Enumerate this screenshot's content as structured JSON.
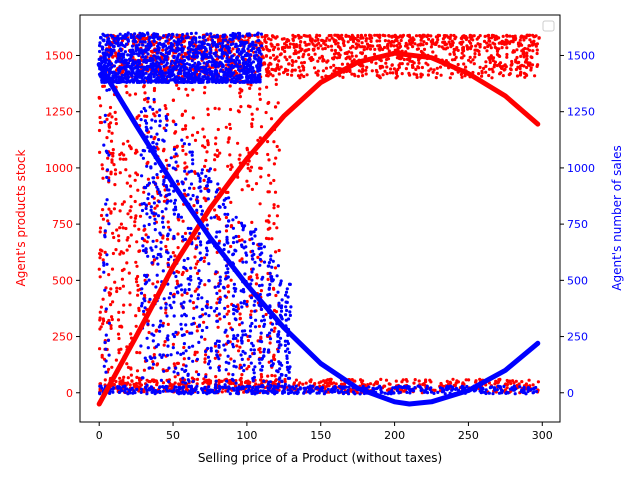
{
  "chart_data": {
    "type": "scatter",
    "title": "",
    "xlabel": "Selling price of a Product (without taxes)",
    "ylabel_left": "Agent's products stock",
    "ylabel_right": "Agent's number of sales",
    "xlim": [
      -13,
      312
    ],
    "ylim_left": [
      -130,
      1680
    ],
    "ylim_right": [
      -130,
      1680
    ],
    "x_ticks": [
      0,
      50,
      100,
      150,
      200,
      250,
      300
    ],
    "y_left_ticks": [
      0,
      250,
      500,
      750,
      1000,
      1250,
      1500
    ],
    "y_right_ticks": [
      0,
      250,
      500,
      750,
      1000,
      1250,
      1500
    ],
    "legend": {
      "placement": "top-right",
      "entries": []
    },
    "grid": false,
    "colors": {
      "stock": "#ff0000",
      "sales": "#0000ff"
    },
    "series": [
      {
        "axis": "left",
        "kind": "scatter",
        "color": "#ff0000",
        "description": "stock points: high plateau ~1500 for price > 110, vertical bands 0-1500 for price 0-120, floor near 0",
        "plateau": {
          "x": [
            5,
            298
          ],
          "y": [
            1400,
            1590
          ]
        },
        "floor": {
          "x": [
            0,
            298
          ],
          "y": [
            0,
            60
          ]
        },
        "band_x": [
          2,
          6,
          10,
          15,
          20,
          26,
          32,
          38,
          45,
          52,
          58,
          65,
          72,
          80,
          88,
          95,
          102,
          108,
          115,
          120
        ]
      },
      {
        "axis": "left",
        "kind": "fit",
        "color": "#ff0000",
        "points": [
          [
            0,
            -50
          ],
          [
            25,
            250
          ],
          [
            50,
            560
          ],
          [
            75,
            820
          ],
          [
            100,
            1040
          ],
          [
            125,
            1230
          ],
          [
            150,
            1380
          ],
          [
            175,
            1470
          ],
          [
            200,
            1510
          ],
          [
            225,
            1490
          ],
          [
            250,
            1420
          ],
          [
            275,
            1320
          ],
          [
            297,
            1195
          ]
        ]
      },
      {
        "axis": "right",
        "kind": "scatter",
        "color": "#0000ff",
        "description": "sales points: cluster ~1500 for price 0-110, vertical bands for price 30-130, tail near 0 up to 297",
        "plateau": {
          "x": [
            0,
            110
          ],
          "y": [
            1380,
            1600
          ]
        },
        "floor": {
          "x": [
            0,
            297
          ],
          "y": [
            -5,
            30
          ]
        },
        "band_x": [
          5,
          30,
          34,
          38,
          42,
          47,
          52,
          57,
          62,
          68,
          74,
          80,
          86,
          92,
          98,
          104,
          110,
          116,
          122,
          128
        ]
      },
      {
        "axis": "right",
        "kind": "fit",
        "color": "#0000ff",
        "points": [
          [
            0,
            1460
          ],
          [
            25,
            1190
          ],
          [
            50,
            930
          ],
          [
            75,
            690
          ],
          [
            100,
            480
          ],
          [
            125,
            290
          ],
          [
            150,
            130
          ],
          [
            175,
            20
          ],
          [
            200,
            -40
          ],
          [
            210,
            -50
          ],
          [
            225,
            -40
          ],
          [
            250,
            10
          ],
          [
            275,
            100
          ],
          [
            297,
            220
          ]
        ]
      }
    ]
  }
}
